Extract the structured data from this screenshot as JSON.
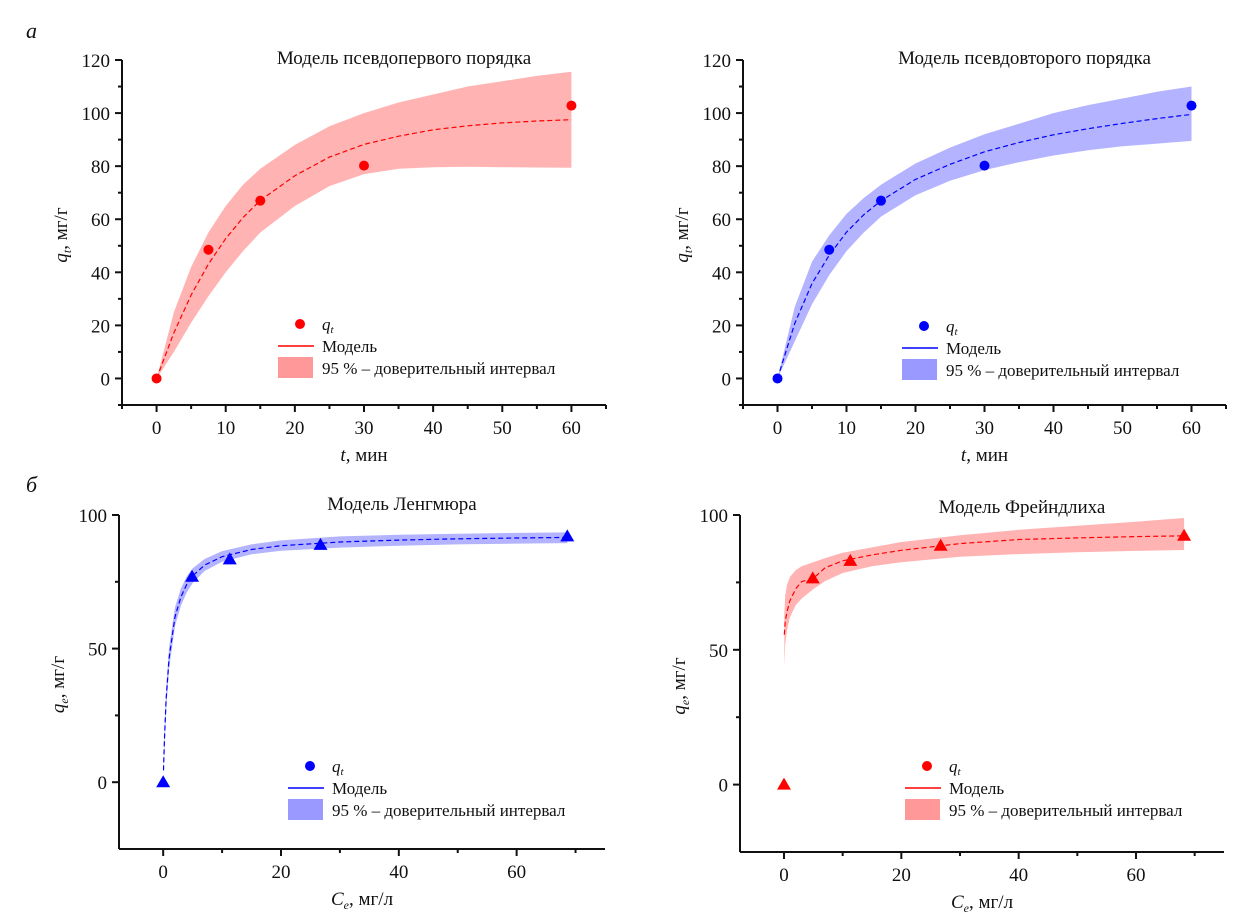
{
  "figure": {
    "panel_letters": [
      "а",
      "б"
    ]
  },
  "chart_data": [
    {
      "type": "scatter",
      "panel": "а",
      "title": "Модель псевдопервого порядка",
      "xlabel_var": "t",
      "xlabel_unit": ", мин",
      "ylabel_var": "q",
      "ylabel_sub": "t",
      "ylabel_unit": ", мг/г",
      "xlim": [
        -5,
        65
      ],
      "ylim": [
        -10,
        120
      ],
      "xticks": [
        0,
        10,
        20,
        30,
        40,
        50,
        60
      ],
      "yticks": [
        0,
        20,
        40,
        60,
        80,
        100,
        120
      ],
      "xminor": [
        -5,
        5,
        15,
        25,
        35,
        45,
        55,
        65
      ],
      "yminor": [
        -10,
        10,
        30,
        50,
        70,
        90,
        110
      ],
      "color": "#ff0000",
      "band_color": "#ff9999",
      "marker": "circle",
      "points": {
        "x": [
          0,
          7.5,
          15,
          30,
          60
        ],
        "y": [
          0,
          48.5,
          67,
          80.2,
          102.8
        ]
      },
      "model": {
        "x": [
          0,
          2.5,
          5,
          7.5,
          10,
          12.5,
          15,
          20,
          25,
          30,
          35,
          40,
          45,
          50,
          55,
          60
        ],
        "y": [
          0,
          17.2,
          31.4,
          43.1,
          52.7,
          60.6,
          67.1,
          76.4,
          83.4,
          88.2,
          91.3,
          93.7,
          95.2,
          96.3,
          97.0,
          97.5
        ]
      },
      "band": {
        "x": [
          0,
          2.5,
          5,
          7.5,
          10,
          12.5,
          15,
          20,
          25,
          30,
          35,
          40,
          45,
          50,
          55,
          60
        ],
        "upper": [
          0,
          25,
          42,
          55,
          65,
          73,
          79,
          88,
          95,
          100,
          104,
          107,
          110,
          112,
          114,
          115.6
        ],
        "lower": [
          0,
          10,
          21,
          31,
          40,
          48,
          55,
          65,
          72.5,
          77,
          79,
          79.6,
          79.8,
          79.6,
          79.5,
          79.4
        ]
      },
      "legend": {
        "placement": "bottom-right",
        "items": [
          {
            "kind": "marker",
            "label": "q",
            "label_sub": "t"
          },
          {
            "kind": "line",
            "label": "Модель"
          },
          {
            "kind": "band",
            "label": "95 % – доверительный интервал"
          }
        ]
      }
    },
    {
      "type": "scatter",
      "panel": "",
      "title": "Модель псевдовторого порядка",
      "xlabel_var": "t",
      "xlabel_unit": ", мин",
      "ylabel_var": "q",
      "ylabel_sub": "t",
      "ylabel_unit": ", мг/г",
      "xlim": [
        -5,
        65
      ],
      "ylim": [
        -10,
        120
      ],
      "xticks": [
        0,
        10,
        20,
        30,
        40,
        50,
        60
      ],
      "yticks": [
        0,
        20,
        40,
        60,
        80,
        100,
        120
      ],
      "xminor": [
        -5,
        5,
        15,
        25,
        35,
        45,
        55,
        65
      ],
      "yminor": [
        -10,
        10,
        30,
        50,
        70,
        90,
        110
      ],
      "color": "#0000ff",
      "band_color": "#9999ff",
      "marker": "circle",
      "points": {
        "x": [
          0,
          7.5,
          15,
          30,
          60
        ],
        "y": [
          0,
          48.5,
          67,
          80.2,
          102.8
        ]
      },
      "model": {
        "x": [
          0,
          2.5,
          5,
          7.5,
          10,
          12.5,
          15,
          20,
          25,
          30,
          35,
          40,
          45,
          50,
          55,
          60
        ],
        "y": [
          0,
          20.8,
          35.8,
          46.5,
          55.1,
          61.7,
          67.0,
          75.0,
          80.7,
          85.4,
          88.9,
          91.8,
          94.1,
          96.1,
          97.9,
          99.5
        ]
      },
      "band": {
        "x": [
          0,
          2.5,
          5,
          7.5,
          10,
          12.5,
          15,
          20,
          25,
          30,
          35,
          40,
          45,
          50,
          55,
          60
        ],
        "upper": [
          0,
          27,
          44,
          54,
          62,
          68,
          73,
          81,
          87,
          92,
          96,
          100,
          103,
          105.5,
          108,
          110
        ],
        "lower": [
          0,
          14,
          28,
          39,
          48,
          55,
          61,
          69,
          74.5,
          78.5,
          81.5,
          84,
          86,
          87.5,
          88.5,
          89.5
        ]
      },
      "legend": {
        "placement": "bottom-right",
        "items": [
          {
            "kind": "marker",
            "label": "q",
            "label_sub": "t"
          },
          {
            "kind": "line",
            "label": "Модель"
          },
          {
            "kind": "band",
            "label": "95 % – доверительный интервал"
          }
        ]
      }
    },
    {
      "type": "scatter",
      "panel": "б",
      "title": "Модель Ленгмюра",
      "xlabel_var": "C",
      "xlabel_sub": "e",
      "xlabel_unit": ", мг/л",
      "ylabel_var": "q",
      "ylabel_sub": "e",
      "ylabel_unit": ", мг/г",
      "xlim": [
        -7.5,
        75
      ],
      "ylim": [
        -25,
        100
      ],
      "xticks": [
        0,
        20,
        40,
        60
      ],
      "yticks": [
        0,
        50,
        100
      ],
      "xminor": [
        10,
        30,
        50,
        70
      ],
      "yminor": [
        25,
        75
      ],
      "color": "#0000ff",
      "band_color": "#9999ff",
      "marker": "triangle",
      "points": {
        "x": [
          0,
          4.9,
          11.3,
          26.7,
          68.6
        ],
        "y": [
          0,
          76.9,
          83.4,
          88.8,
          92.0
        ]
      },
      "model": {
        "x": [
          0.05,
          0.2,
          0.5,
          1,
          2,
          3,
          4,
          5,
          7,
          10,
          15,
          20,
          30,
          40,
          50,
          60,
          68.6
        ],
        "y": [
          4.4,
          15.5,
          30.9,
          46.5,
          61.9,
          69.3,
          74.0,
          77.2,
          81.2,
          84.4,
          87.1,
          88.5,
          89.9,
          90.6,
          91.1,
          91.4,
          91.6
        ]
      },
      "band": {
        "x": [
          0.05,
          0.2,
          0.5,
          1,
          2,
          3,
          4,
          5,
          7,
          10,
          15,
          20,
          30,
          40,
          50,
          60,
          68.6
        ],
        "upper": [
          6,
          19,
          35,
          50.5,
          65.5,
          72.5,
          77,
          80,
          83.5,
          86.5,
          89,
          90.5,
          92,
          92.6,
          93,
          93.3,
          93.5
        ],
        "lower": [
          3,
          12,
          27,
          42.5,
          58.5,
          66,
          71,
          74.5,
          79,
          82.5,
          85.3,
          86.6,
          87.8,
          88.5,
          89,
          89.3,
          89.5
        ]
      },
      "legend": {
        "placement": "bottom-right",
        "items": [
          {
            "kind": "marker",
            "label": "q",
            "label_sub": "t"
          },
          {
            "kind": "line",
            "label": "Модель"
          },
          {
            "kind": "band",
            "label": "95 % – доверительный интервал"
          }
        ]
      }
    },
    {
      "type": "scatter",
      "panel": "",
      "title": "Модель Фрейндлиха",
      "xlabel_var": "C",
      "xlabel_sub": "e",
      "xlabel_unit": ", мг/л",
      "ylabel_var": "q",
      "ylabel_sub": "e",
      "ylabel_unit": ", мг/г",
      "xlim": [
        -7.5,
        75
      ],
      "ylim": [
        -25,
        100
      ],
      "xticks": [
        0,
        20,
        40,
        60
      ],
      "yticks": [
        0,
        50,
        100
      ],
      "xminor": [
        10,
        30,
        50,
        70
      ],
      "yminor": [
        25,
        75
      ],
      "color": "#ff0000",
      "band_color": "#ff9999",
      "marker": "triangle",
      "points": {
        "x": [
          0,
          4.9,
          11.3,
          26.7,
          68.2
        ],
        "y": [
          0,
          76.5,
          83.0,
          88.6,
          92.3
        ]
      },
      "model": {
        "x": [
          0.05,
          0.2,
          0.5,
          1,
          2,
          3,
          5,
          7,
          10,
          15,
          20,
          30,
          40,
          50,
          60,
          68.2
        ],
        "y": [
          55.6,
          60.3,
          64.0,
          68.2,
          72.6,
          75.3,
          76.5,
          80.4,
          83.0,
          85.2,
          86.9,
          89.4,
          90.9,
          91.5,
          92.0,
          92.3
        ]
      },
      "band": {
        "x": [
          0.05,
          0.2,
          0.5,
          1,
          2,
          3,
          5,
          7,
          10,
          15,
          20,
          30,
          40,
          50,
          60,
          68.2
        ],
        "upper": [
          63,
          70,
          74,
          77,
          79.5,
          81,
          82.5,
          84,
          86,
          88,
          90,
          92.5,
          94.5,
          96,
          97.5,
          98.9
        ],
        "lower": [
          44,
          52,
          57,
          62,
          66.5,
          69,
          72.5,
          75.5,
          78.5,
          81,
          82.5,
          84.5,
          85.5,
          86.2,
          86.7,
          87.0
        ]
      },
      "legend": {
        "placement": "bottom-right",
        "items": [
          {
            "kind": "marker",
            "label": "q",
            "label_sub": "t"
          },
          {
            "kind": "line",
            "label": "Модель"
          },
          {
            "kind": "band",
            "label": "95 % – доверительный интервал"
          }
        ]
      }
    }
  ]
}
